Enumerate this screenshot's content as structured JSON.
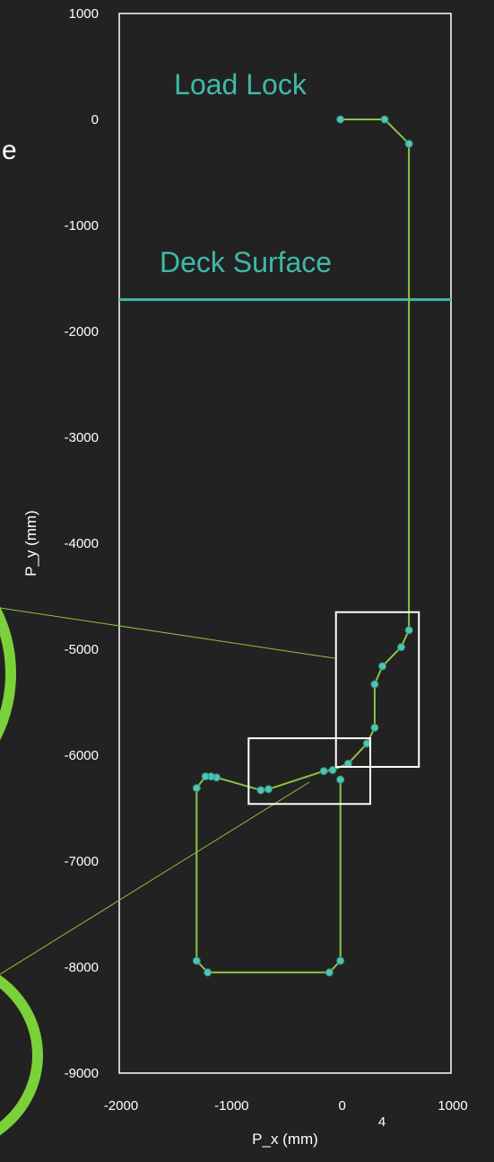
{
  "chart_data": {
    "type": "scatter",
    "xlabel": "P_x (mm)",
    "ylabel": "P_y (mm)",
    "xlim": [
      -2000,
      1000
    ],
    "ylim": [
      -9000,
      1000
    ],
    "x_ticks": [
      -2000,
      -1000,
      0,
      1000
    ],
    "y_ticks": [
      1000,
      0,
      -1000,
      -2000,
      -3000,
      -4000,
      -5000,
      -6000,
      -7000,
      -8000,
      -9000
    ],
    "grid": false,
    "series_color": "#8cc43f",
    "marker_color": "#4fc4b2",
    "points": [
      {
        "x": 0,
        "y": 0
      },
      {
        "x": 400,
        "y": 0
      },
      {
        "x": 620,
        "y": -230
      },
      {
        "x": 620,
        "y": -4820
      },
      {
        "x": 550,
        "y": -4980
      },
      {
        "x": 380,
        "y": -5160
      },
      {
        "x": 310,
        "y": -5330
      },
      {
        "x": 310,
        "y": -5740
      },
      {
        "x": 240,
        "y": -5890
      },
      {
        "x": 70,
        "y": -6080
      },
      {
        "x": -70,
        "y": -6140
      },
      {
        "x": -150,
        "y": -6150
      },
      {
        "x": -650,
        "y": -6320
      },
      {
        "x": -720,
        "y": -6330
      },
      {
        "x": -1120,
        "y": -6210
      },
      {
        "x": -1170,
        "y": -6200
      },
      {
        "x": -1220,
        "y": -6200
      },
      {
        "x": -1300,
        "y": -6310
      },
      {
        "x": -1300,
        "y": -7940
      },
      {
        "x": -1200,
        "y": -8050
      },
      {
        "x": -100,
        "y": -8050
      },
      {
        "x": 0,
        "y": -7940
      },
      {
        "x": 0,
        "y": -6230
      }
    ],
    "reference_lines": [
      {
        "type": "horizontal",
        "y": -1700,
        "label": "Deck Surface",
        "color": "#3fb9a8"
      }
    ],
    "annotations": [
      {
        "text": "Load Lock",
        "color": "#3fb9a8"
      }
    ],
    "zoom_boxes": [
      {
        "x0": -830,
        "x1": 270,
        "y0": -6460,
        "y1": -5840
      },
      {
        "x0": -40,
        "x1": 710,
        "y0": -6110,
        "y1": -4650
      }
    ]
  },
  "decor": {
    "stray_letter": "e",
    "page_number": "4",
    "callout_color": "#8cc43f",
    "magnifier_color": "#7bd13a"
  }
}
